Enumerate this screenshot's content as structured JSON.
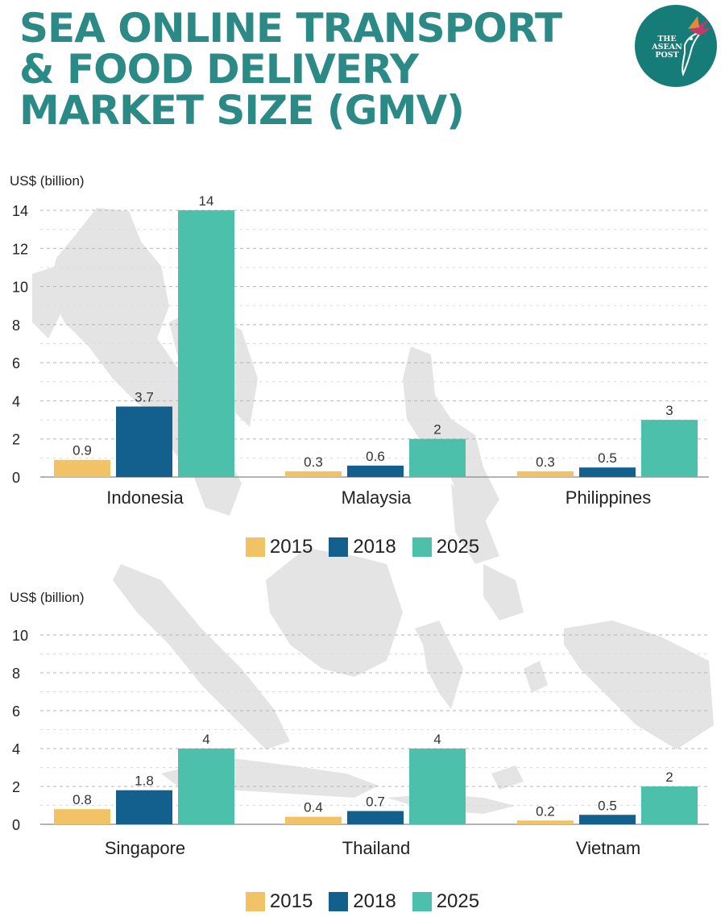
{
  "title_lines": [
    "SEA ONLINE TRANSPORT",
    "& FOOD DELIVERY",
    "MARKET SIZE (GMV)"
  ],
  "logo": {
    "lines": [
      "THE",
      "ASEAN",
      "POST"
    ],
    "icon": "hummingbird-icon"
  },
  "colors": {
    "title": "#2c8a86",
    "s2015": "#f2c366",
    "s2018": "#135f8e",
    "s2025": "#4cc0ab",
    "grid": "#b5b5b5",
    "axis": "#9a9a9a",
    "map": "#e4e4e4"
  },
  "legend": [
    {
      "label": "2015",
      "color": "#f2c366"
    },
    {
      "label": "2018",
      "color": "#135f8e"
    },
    {
      "label": "2025",
      "color": "#4cc0ab"
    }
  ],
  "chart_data": [
    {
      "type": "bar",
      "ylabel": "US$ (billion)",
      "ylim": [
        0,
        14
      ],
      "yticks": [
        0,
        2,
        4,
        6,
        8,
        10,
        12,
        14
      ],
      "categories": [
        "Indonesia",
        "Malaysia",
        "Philippines"
      ],
      "series": [
        {
          "name": "2015",
          "values": [
            0.9,
            0.3,
            0.3
          ],
          "labels": [
            "0.9",
            "0.3",
            "0.3"
          ]
        },
        {
          "name": "2018",
          "values": [
            3.7,
            0.6,
            0.5
          ],
          "labels": [
            "3.7",
            "0.6",
            "0.5"
          ]
        },
        {
          "name": "2025",
          "values": [
            14,
            2,
            3
          ],
          "labels": [
            "14",
            "2",
            "3"
          ]
        }
      ],
      "grid": true,
      "legend": "bottom-center"
    },
    {
      "type": "bar",
      "ylabel": "US$ (billion)",
      "ylim": [
        0,
        10
      ],
      "yticks": [
        0,
        2,
        4,
        6,
        8,
        10
      ],
      "categories": [
        "Singapore",
        "Thailand",
        "Vietnam"
      ],
      "series": [
        {
          "name": "2015",
          "values": [
            0.8,
            0.4,
            0.2
          ],
          "labels": [
            "0.8",
            "0.4",
            "0.2"
          ]
        },
        {
          "name": "2018",
          "values": [
            1.8,
            0.7,
            0.5
          ],
          "labels": [
            "1.8",
            "0.7",
            "0.5"
          ]
        },
        {
          "name": "2025",
          "values": [
            4,
            4,
            2
          ],
          "labels": [
            "4",
            "4",
            "2"
          ]
        }
      ],
      "grid": true,
      "legend": "bottom-center"
    }
  ]
}
